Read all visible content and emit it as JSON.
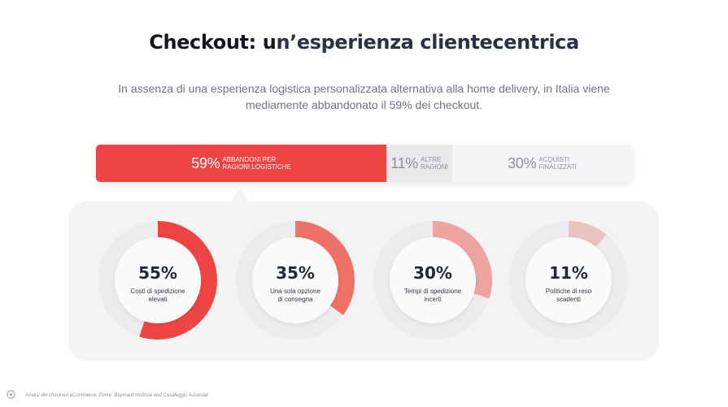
{
  "title_part1": "Checkout: u",
  "title_part2": "n’esperienza clientecentrica",
  "subtitle": "In assenza di una esperienza logistica personalizzata alternativa alla home delivery, in Italia viene mediamente abbandonato il 59% dei checkout.",
  "chart_data": [
    {
      "type": "bar",
      "orientation": "horizontal-stacked",
      "categories": [
        "ABBANDONI PER RAGIONI LOGISTICHE",
        "ALTRE RAGIONI",
        "ACQUISTI FINALIZZATI"
      ],
      "values": [
        59,
        11,
        30
      ],
      "display": [
        "59%",
        "11%",
        "30%"
      ],
      "label_lines": [
        [
          "ABBANDONI PER",
          "RAGIONI LOGISTICHE"
        ],
        [
          "ALTRE",
          "RAGIONI"
        ],
        [
          "ACQUISTI",
          "FINALIZZATI"
        ]
      ],
      "colors": [
        "#ef4444",
        "#e9e9ec",
        "#f5f5f7"
      ]
    },
    {
      "type": "pie",
      "variant": "donut-gauges",
      "categories": [
        "Costi di spedizione elevati",
        "Una sola opzione di consegna",
        "Tempi di spedizione incerti",
        "Politiche di reso scadenti"
      ],
      "values": [
        55,
        35,
        30,
        11
      ],
      "display": [
        "55%",
        "35%",
        "30%",
        "11%"
      ],
      "caption_lines": [
        [
          "Costi di spedizione",
          "elevati"
        ],
        [
          "Una sola opzione",
          "di consegna"
        ],
        [
          "Tempi di spedizione",
          "incerti"
        ],
        [
          "Politiche di reso",
          "scadenti"
        ]
      ],
      "colors": [
        "#ef4444",
        "#ef7268",
        "#eda39e",
        "#e8c4c1"
      ],
      "track_color": "#ececee"
    }
  ],
  "footer": "Analisi del checkout eCommerce. Fonte: Baymard Institute and Casaleggio Associati",
  "footer_icon": "brand-logo-icon"
}
